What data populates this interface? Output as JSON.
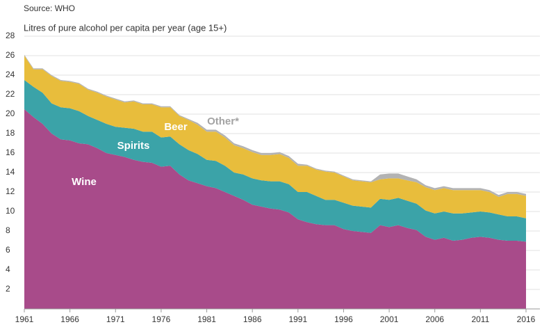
{
  "chart_data": {
    "type": "stacked-area",
    "subtitle": "Source: WHO",
    "y_label": "Litres of pure alcohol per capita per year (age 15+)",
    "x": [
      1961,
      1962,
      1963,
      1964,
      1965,
      1966,
      1967,
      1968,
      1969,
      1970,
      1971,
      1972,
      1973,
      1974,
      1975,
      1976,
      1977,
      1978,
      1979,
      1980,
      1981,
      1982,
      1983,
      1984,
      1985,
      1986,
      1987,
      1988,
      1989,
      1990,
      1991,
      1992,
      1993,
      1994,
      1995,
      1996,
      1997,
      1998,
      1999,
      2000,
      2001,
      2002,
      2003,
      2004,
      2005,
      2006,
      2007,
      2008,
      2009,
      2010,
      2011,
      2012,
      2013,
      2014,
      2015,
      2016
    ],
    "xlim": [
      1961,
      2016
    ],
    "xticks": [
      1961,
      1966,
      1971,
      1976,
      1981,
      1986,
      1991,
      1996,
      2001,
      2006,
      2011,
      2016
    ],
    "ylim": [
      0,
      28
    ],
    "yticks": [
      2,
      4,
      6,
      8,
      10,
      12,
      14,
      16,
      18,
      20,
      22,
      24,
      26,
      28
    ],
    "grid": true,
    "series": [
      {
        "name": "Wine",
        "color": "#a84b8a",
        "values": [
          20.5,
          19.7,
          19.0,
          18.0,
          17.4,
          17.3,
          17.0,
          16.9,
          16.5,
          16.0,
          15.8,
          15.6,
          15.3,
          15.1,
          15.0,
          14.6,
          14.7,
          13.8,
          13.2,
          12.9,
          12.6,
          12.4,
          12.0,
          11.6,
          11.2,
          10.7,
          10.5,
          10.3,
          10.2,
          9.9,
          9.2,
          8.9,
          8.7,
          8.6,
          8.6,
          8.2,
          8.0,
          7.9,
          7.8,
          8.6,
          8.4,
          8.6,
          8.3,
          8.1,
          7.4,
          7.1,
          7.3,
          7.0,
          7.1,
          7.3,
          7.4,
          7.3,
          7.1,
          7.0,
          7.0,
          6.9
        ]
      },
      {
        "name": "Spirits",
        "color": "#3ba3a8",
        "values": [
          3.0,
          3.1,
          3.2,
          3.1,
          3.3,
          3.3,
          3.3,
          2.9,
          2.9,
          3.0,
          2.9,
          3.0,
          3.2,
          3.1,
          3.2,
          3.0,
          3.0,
          3.1,
          3.1,
          3.0,
          2.7,
          2.8,
          2.7,
          2.4,
          2.6,
          2.7,
          2.7,
          2.8,
          2.9,
          2.9,
          2.8,
          3.1,
          2.9,
          2.6,
          2.6,
          2.7,
          2.6,
          2.6,
          2.6,
          2.7,
          2.8,
          2.8,
          2.8,
          2.7,
          2.7,
          2.7,
          2.7,
          2.8,
          2.7,
          2.6,
          2.6,
          2.6,
          2.6,
          2.5,
          2.5,
          2.4
        ]
      },
      {
        "name": "Beer",
        "color": "#e8bd3c",
        "values": [
          2.5,
          1.8,
          2.4,
          2.8,
          2.7,
          2.7,
          2.8,
          2.7,
          2.8,
          2.8,
          2.8,
          2.6,
          2.8,
          2.8,
          2.8,
          3.1,
          3.0,
          2.9,
          3.1,
          3.0,
          2.9,
          3.0,
          2.9,
          2.8,
          2.7,
          2.7,
          2.6,
          2.7,
          2.8,
          2.7,
          2.7,
          2.7,
          2.7,
          2.9,
          2.8,
          2.7,
          2.6,
          2.6,
          2.6,
          2.0,
          2.2,
          2.0,
          2.1,
          2.2,
          2.4,
          2.4,
          2.4,
          2.4,
          2.4,
          2.3,
          2.2,
          2.1,
          1.8,
          2.3,
          2.3,
          2.3
        ]
      },
      {
        "name": "Other*",
        "color": "#b3b3b3",
        "values": [
          0.1,
          0.1,
          0.1,
          0.1,
          0.1,
          0.1,
          0.1,
          0.1,
          0.1,
          0.1,
          0.1,
          0.1,
          0.1,
          0.1,
          0.1,
          0.1,
          0.1,
          0.1,
          0.1,
          0.2,
          0.2,
          0.2,
          0.2,
          0.2,
          0.2,
          0.2,
          0.2,
          0.2,
          0.2,
          0.2,
          0.2,
          0.1,
          0.1,
          0.1,
          0.1,
          0.1,
          0.1,
          0.1,
          0.1,
          0.5,
          0.5,
          0.5,
          0.4,
          0.3,
          0.2,
          0.2,
          0.2,
          0.2,
          0.2,
          0.2,
          0.2,
          0.2,
          0.2,
          0.2,
          0.2,
          0.2
        ]
      }
    ]
  }
}
